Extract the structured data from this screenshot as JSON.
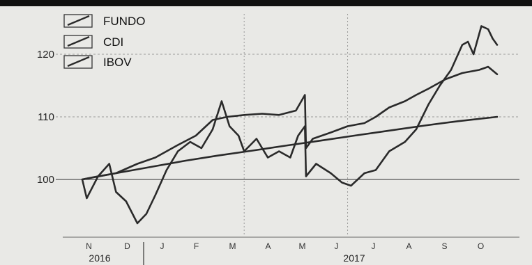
{
  "chart_data": {
    "type": "line",
    "title": "",
    "xlabel": "",
    "ylabel": "",
    "ylim": [
      95,
      126
    ],
    "y_ticks": [
      100,
      110,
      120
    ],
    "grid": "dotted horizontal and vertical",
    "legend_position": "top-left",
    "month_ticks": [
      "N",
      "D",
      "J",
      "F",
      "M",
      "A",
      "M",
      "J",
      "J",
      "A",
      "S",
      "O"
    ],
    "years": [
      "2016",
      "2017"
    ],
    "colors": {
      "line": "#2a2a2a",
      "background": "#e9e9e6",
      "header": "#111111",
      "grid": "#9a9a9a"
    },
    "series": [
      {
        "name": "FUNDO",
        "points": [
          [
            "2016-11-01",
            100
          ],
          [
            "2016-11-15",
            100.5
          ],
          [
            "2016-12-01",
            101
          ],
          [
            "2016-12-20",
            102.5
          ],
          [
            "2017-01-05",
            103.5
          ],
          [
            "2017-01-25",
            105.5
          ],
          [
            "2017-02-10",
            107
          ],
          [
            "2017-02-25",
            109.5
          ],
          [
            "2017-03-10",
            110
          ],
          [
            "2017-03-25",
            110.3
          ],
          [
            "2017-04-10",
            110.5
          ],
          [
            "2017-04-25",
            110.3
          ],
          [
            "2017-05-10",
            111
          ],
          [
            "2017-05-18",
            113.5
          ],
          [
            "2017-05-19",
            105
          ],
          [
            "2017-05-25",
            106.5
          ],
          [
            "2017-06-10",
            107.5
          ],
          [
            "2017-06-25",
            108.5
          ],
          [
            "2017-07-10",
            109
          ],
          [
            "2017-07-20",
            110
          ],
          [
            "2017-08-01",
            111.5
          ],
          [
            "2017-08-15",
            112.5
          ],
          [
            "2017-08-25",
            113.5
          ],
          [
            "2017-09-05",
            114.5
          ],
          [
            "2017-09-20",
            116
          ],
          [
            "2017-10-05",
            117
          ],
          [
            "2017-10-20",
            117.5
          ],
          [
            "2017-10-28",
            118
          ],
          [
            "2017-11-05",
            116.8
          ]
        ]
      },
      {
        "name": "CDI",
        "points": [
          [
            "2016-11-01",
            100
          ],
          [
            "2016-12-01",
            101
          ],
          [
            "2017-01-01",
            102
          ],
          [
            "2017-02-01",
            103
          ],
          [
            "2017-03-01",
            103.8
          ],
          [
            "2017-04-01",
            104.6
          ],
          [
            "2017-05-01",
            105.4
          ],
          [
            "2017-06-01",
            106.2
          ],
          [
            "2017-07-01",
            107
          ],
          [
            "2017-08-01",
            107.8
          ],
          [
            "2017-09-01",
            108.6
          ],
          [
            "2017-10-01",
            109.3
          ],
          [
            "2017-11-05",
            110
          ]
        ]
      },
      {
        "name": "IBOV",
        "points": [
          [
            "2016-11-01",
            100
          ],
          [
            "2016-11-05",
            97
          ],
          [
            "2016-11-15",
            100.5
          ],
          [
            "2016-11-25",
            102.5
          ],
          [
            "2016-12-01",
            98
          ],
          [
            "2016-12-10",
            96.5
          ],
          [
            "2016-12-20",
            93
          ],
          [
            "2016-12-28",
            94.5
          ],
          [
            "2017-01-05",
            97.5
          ],
          [
            "2017-01-15",
            101.5
          ],
          [
            "2017-01-25",
            104.5
          ],
          [
            "2017-02-05",
            106
          ],
          [
            "2017-02-15",
            105
          ],
          [
            "2017-02-25",
            108
          ],
          [
            "2017-03-05",
            112.5
          ],
          [
            "2017-03-12",
            108.5
          ],
          [
            "2017-03-20",
            107
          ],
          [
            "2017-03-25",
            104.5
          ],
          [
            "2017-04-05",
            106.5
          ],
          [
            "2017-04-15",
            103.5
          ],
          [
            "2017-04-25",
            104.5
          ],
          [
            "2017-05-05",
            103.5
          ],
          [
            "2017-05-12",
            107
          ],
          [
            "2017-05-18",
            108.5
          ],
          [
            "2017-05-19",
            100.5
          ],
          [
            "2017-05-28",
            102.5
          ],
          [
            "2017-06-10",
            101
          ],
          [
            "2017-06-20",
            99.5
          ],
          [
            "2017-06-28",
            99
          ],
          [
            "2017-07-10",
            101
          ],
          [
            "2017-07-20",
            101.5
          ],
          [
            "2017-08-01",
            104.5
          ],
          [
            "2017-08-15",
            106
          ],
          [
            "2017-08-25",
            108
          ],
          [
            "2017-09-05",
            112
          ],
          [
            "2017-09-15",
            115
          ],
          [
            "2017-09-25",
            117.5
          ],
          [
            "2017-10-05",
            121.5
          ],
          [
            "2017-10-10",
            122
          ],
          [
            "2017-10-15",
            120
          ],
          [
            "2017-10-22",
            124.5
          ],
          [
            "2017-10-28",
            124
          ],
          [
            "2017-11-01",
            122.5
          ],
          [
            "2017-11-05",
            121.5
          ]
        ]
      }
    ]
  }
}
